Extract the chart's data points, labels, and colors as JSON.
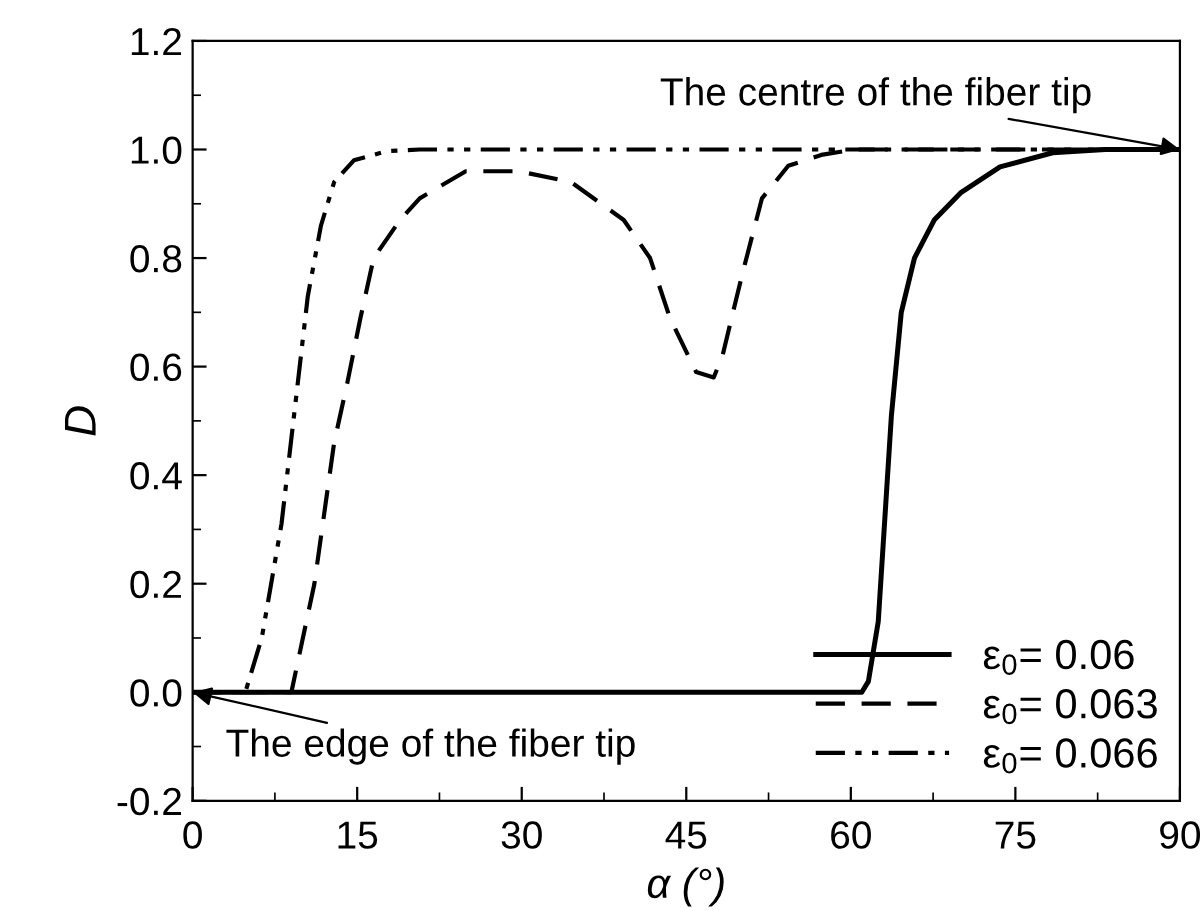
{
  "chart_data": {
    "type": "line",
    "xlabel": "α (°)",
    "ylabel": "D",
    "xlim": [
      0,
      90
    ],
    "xticks": [
      0,
      15,
      30,
      45,
      60,
      75,
      90
    ],
    "ylim": [
      -0.2,
      1.2
    ],
    "yticks": [
      -0.2,
      {
        "value": 0,
        "label": "0.0"
      },
      0.2,
      0.4,
      0.6,
      0.8,
      {
        "value": 1,
        "label": "1.0"
      },
      1.2
    ],
    "legend": "bottom right",
    "grid": false,
    "series": [
      {
        "name": "ε$_{0}$= 0.06",
        "color": "#000000",
        "line_style": "solid",
        "x": [
          0,
          61.0,
          61.6,
          62.5,
          63.1,
          63.7,
          64.6,
          65.8,
          67.6,
          70.0,
          73.6,
          78.4,
          83.2,
          90
        ],
        "values": [
          0,
          0,
          0.02,
          0.13,
          0.32,
          0.51,
          0.7,
          0.8,
          0.87,
          0.92,
          0.968,
          0.994,
          1.0,
          1.0
        ]
      },
      {
        "name": "ε$_{0}$= 0.063",
        "color": "#000000",
        "line_style": "dashed",
        "x": [
          0,
          9.0,
          11.1,
          12.9,
          14.1,
          15.3,
          16.5,
          18.9,
          20.7,
          24.9,
          29.7,
          34.5,
          39.3,
          41.7,
          43.5,
          45.9,
          47.5,
          48.3,
          50.1,
          51.9,
          54.3,
          57.3,
          60.3,
          90
        ],
        "values": [
          0,
          0,
          0.2,
          0.46,
          0.57,
          0.69,
          0.8,
          0.87,
          0.91,
          0.96,
          0.96,
          0.94,
          0.87,
          0.8,
          0.69,
          0.59,
          0.58,
          0.62,
          0.77,
          0.91,
          0.97,
          0.99,
          1.0,
          1.0
        ]
      },
      {
        "name": "ε$_{0}$= 0.066",
        "color": "#000000",
        "line_style": "dashdotdot",
        "x": [
          0,
          4.8,
          6.3,
          8.1,
          9.3,
          10.5,
          11.7,
          12.9,
          14.7,
          17.7,
          20.7,
          90
        ],
        "values": [
          0,
          0,
          0.1,
          0.31,
          0.52,
          0.73,
          0.86,
          0.94,
          0.98,
          0.997,
          1.0,
          1.0
        ]
      }
    ],
    "annotations": [
      {
        "text": "The centre of the fiber tip",
        "x": 90,
        "y": 1.0
      },
      {
        "text": "The edge of the fiber tip",
        "x": 0,
        "y": 0.0
      }
    ]
  }
}
